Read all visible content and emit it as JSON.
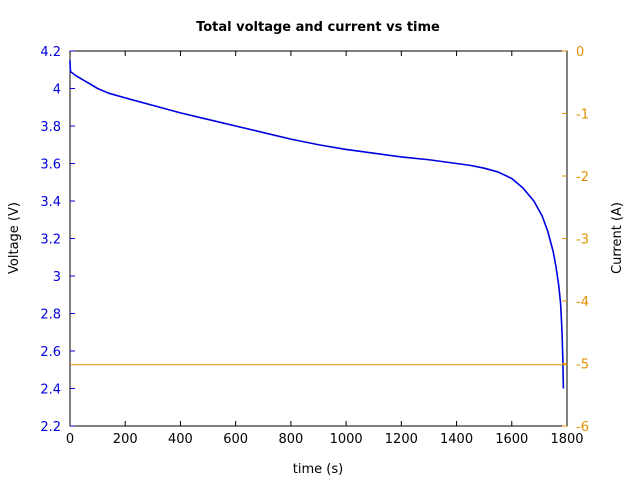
{
  "chart_data": {
    "type": "line",
    "title": "Total voltage and current vs time",
    "xlabel": "time (s)",
    "ylabel": "Voltage (V)",
    "y2label": "Current (A)",
    "xlim": [
      0,
      1800
    ],
    "ylim": [
      2.2,
      4.2
    ],
    "y2lim": [
      -6,
      0
    ],
    "xticks": [
      0,
      200,
      400,
      600,
      800,
      1000,
      1200,
      1400,
      1600,
      1800
    ],
    "yticks": [
      2.2,
      2.4,
      2.6,
      2.8,
      3,
      3.2,
      3.4,
      3.6,
      3.8,
      4,
      4.2
    ],
    "y2ticks": [
      0,
      -1,
      -2,
      -3,
      -4,
      -5,
      -6
    ],
    "grid": false,
    "colors": {
      "voltage": "#0000e0",
      "current": "#e09000",
      "frame": "#000000"
    },
    "series": [
      {
        "axis": "left",
        "x": [
          0,
          0.5,
          2,
          20,
          60,
          100,
          140,
          200,
          300,
          400,
          500,
          600,
          700,
          800,
          900,
          1000,
          1100,
          1200,
          1300,
          1400,
          1450,
          1500,
          1550,
          1600,
          1640,
          1680,
          1710,
          1730,
          1750,
          1760,
          1770,
          1777,
          1782,
          1785,
          1787
        ],
        "y": [
          4.15,
          4.12,
          4.09,
          4.07,
          4.035,
          4.0,
          3.975,
          3.95,
          3.91,
          3.87,
          3.835,
          3.8,
          3.765,
          3.73,
          3.7,
          3.675,
          3.655,
          3.635,
          3.62,
          3.6,
          3.59,
          3.575,
          3.555,
          3.52,
          3.47,
          3.4,
          3.32,
          3.24,
          3.13,
          3.05,
          2.95,
          2.85,
          2.7,
          2.55,
          2.4
        ]
      },
      {
        "axis": "right",
        "x": [
          0,
          1800
        ],
        "y": [
          -5.02,
          -5.02
        ]
      }
    ]
  }
}
